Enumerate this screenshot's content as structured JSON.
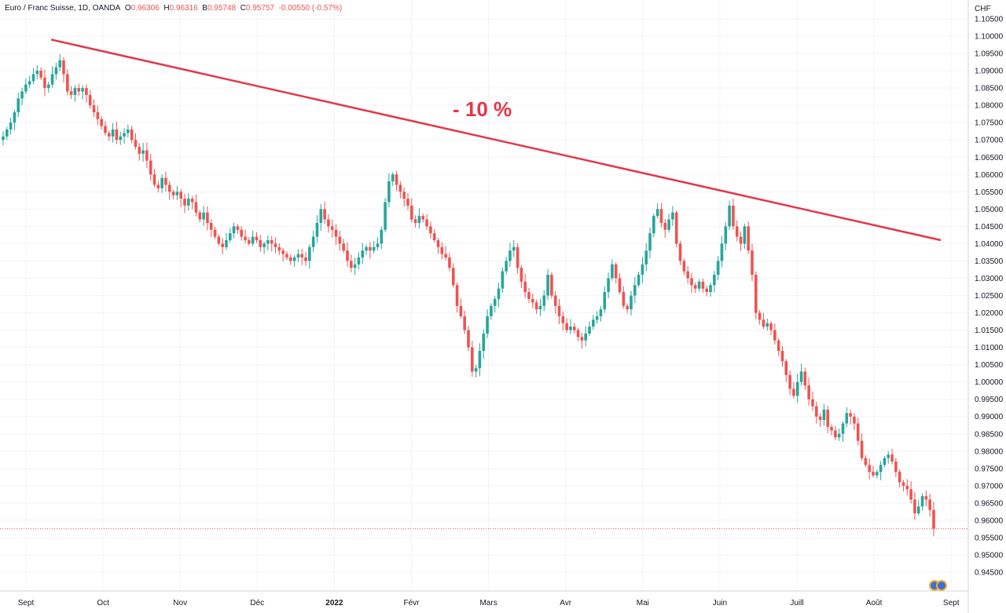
{
  "header": {
    "symbol": "Euro / Franc Suisse, 1D, OANDA",
    "o_label": "O",
    "o_value": "0.96306",
    "h_label": "H",
    "h_value": "0.96316",
    "b_label": "B",
    "b_value": "0.95748",
    "c_label": "C",
    "c_value": "0.95757",
    "change": "-0.00550 (-0.57%)"
  },
  "currency": "CHF",
  "annotation": "- 10 %",
  "colors": {
    "up": "#26a69a",
    "down": "#ef5350",
    "trendline": "#e5364a",
    "grid": "#f0f3fa",
    "last_price_line": "#ef5350"
  },
  "chart_data": {
    "type": "candlestick",
    "y_axis": {
      "min": 0.943,
      "max": 1.1065,
      "ticks": [
        "1.10500",
        "1.10000",
        "1.09500",
        "1.09000",
        "1.08500",
        "1.08000",
        "1.07500",
        "1.07000",
        "1.06500",
        "1.06000",
        "1.05500",
        "1.05000",
        "1.04500",
        "1.04000",
        "1.03500",
        "1.03000",
        "1.02500",
        "1.02000",
        "1.01500",
        "1.01000",
        "1.00500",
        "1.00000",
        "0.99500",
        "0.99000",
        "0.98500",
        "0.98000",
        "0.97500",
        "0.97000",
        "0.96500",
        "0.96000",
        "0.95500",
        "0.95000",
        "0.94500"
      ]
    },
    "x_axis": {
      "labels": [
        "Sept",
        "Oct",
        "Nov",
        "Déc",
        "2022",
        "Févr",
        "Mars",
        "Avr",
        "Mai",
        "Juin",
        "Juill",
        "Août",
        "Sept"
      ],
      "bold": [
        false,
        false,
        false,
        false,
        true,
        false,
        false,
        false,
        false,
        false,
        false,
        false,
        false
      ]
    },
    "last_price": 0.95757,
    "trendline": {
      "start": 1.099,
      "end": 1.041
    },
    "close_series": [
      1.071,
      1.073,
      1.075,
      1.078,
      1.082,
      1.084,
      1.086,
      1.087,
      1.089,
      1.09,
      1.088,
      1.085,
      1.086,
      1.089,
      1.091,
      1.093,
      1.089,
      1.084,
      1.083,
      1.085,
      1.084,
      1.085,
      1.083,
      1.08,
      1.078,
      1.076,
      1.074,
      1.072,
      1.071,
      1.073,
      1.07,
      1.071,
      1.072,
      1.073,
      1.07,
      1.068,
      1.066,
      1.067,
      1.064,
      1.06,
      1.057,
      1.056,
      1.059,
      1.057,
      1.055,
      1.054,
      1.055,
      1.053,
      1.051,
      1.053,
      1.052,
      1.049,
      1.047,
      1.049,
      1.046,
      1.044,
      1.042,
      1.04,
      1.039,
      1.041,
      1.043,
      1.045,
      1.044,
      1.042,
      1.041,
      1.04,
      1.042,
      1.041,
      1.039,
      1.04,
      1.041,
      1.04,
      1.039,
      1.038,
      1.037,
      1.036,
      1.035,
      1.036,
      1.037,
      1.036,
      1.035,
      1.039,
      1.042,
      1.046,
      1.05,
      1.047,
      1.045,
      1.044,
      1.042,
      1.04,
      1.038,
      1.035,
      1.033,
      1.034,
      1.036,
      1.038,
      1.039,
      1.038,
      1.039,
      1.04,
      1.044,
      1.052,
      1.058,
      1.06,
      1.057,
      1.055,
      1.053,
      1.051,
      1.047,
      1.046,
      1.048,
      1.047,
      1.045,
      1.043,
      1.041,
      1.039,
      1.037,
      1.036,
      1.033,
      1.028,
      1.022,
      1.019,
      1.015,
      1.01,
      1.003,
      1.004,
      1.009,
      1.014,
      1.019,
      1.022,
      1.024,
      1.027,
      1.032,
      1.035,
      1.038,
      1.039,
      1.033,
      1.029,
      1.026,
      1.024,
      1.023,
      1.021,
      1.022,
      1.025,
      1.031,
      1.025,
      1.022,
      1.019,
      1.017,
      1.015,
      1.016,
      1.015,
      1.013,
      1.012,
      1.014,
      1.016,
      1.018,
      1.019,
      1.021,
      1.026,
      1.03,
      1.034,
      1.03,
      1.026,
      1.022,
      1.021,
      1.025,
      1.028,
      1.031,
      1.034,
      1.038,
      1.043,
      1.048,
      1.05,
      1.046,
      1.044,
      1.047,
      1.049,
      1.04,
      1.035,
      1.032,
      1.03,
      1.028,
      1.027,
      1.029,
      1.027,
      1.026,
      1.028,
      1.031,
      1.035,
      1.04,
      1.045,
      1.051,
      1.045,
      1.042,
      1.04,
      1.045,
      1.038,
      1.031,
      1.02,
      1.018,
      1.016,
      1.017,
      1.015,
      1.012,
      1.009,
      1.006,
      1.002,
      0.998,
      0.996,
      1.0,
      1.003,
      0.999,
      0.995,
      0.993,
      0.99,
      0.989,
      0.992,
      0.987,
      0.986,
      0.984,
      0.985,
      0.988,
      0.991,
      0.99,
      0.988,
      0.983,
      0.978,
      0.976,
      0.974,
      0.973,
      0.974,
      0.976,
      0.978,
      0.979,
      0.977,
      0.974,
      0.971,
      0.97,
      0.969,
      0.966,
      0.962,
      0.964,
      0.967,
      0.966,
      0.963,
      0.95757
    ]
  }
}
